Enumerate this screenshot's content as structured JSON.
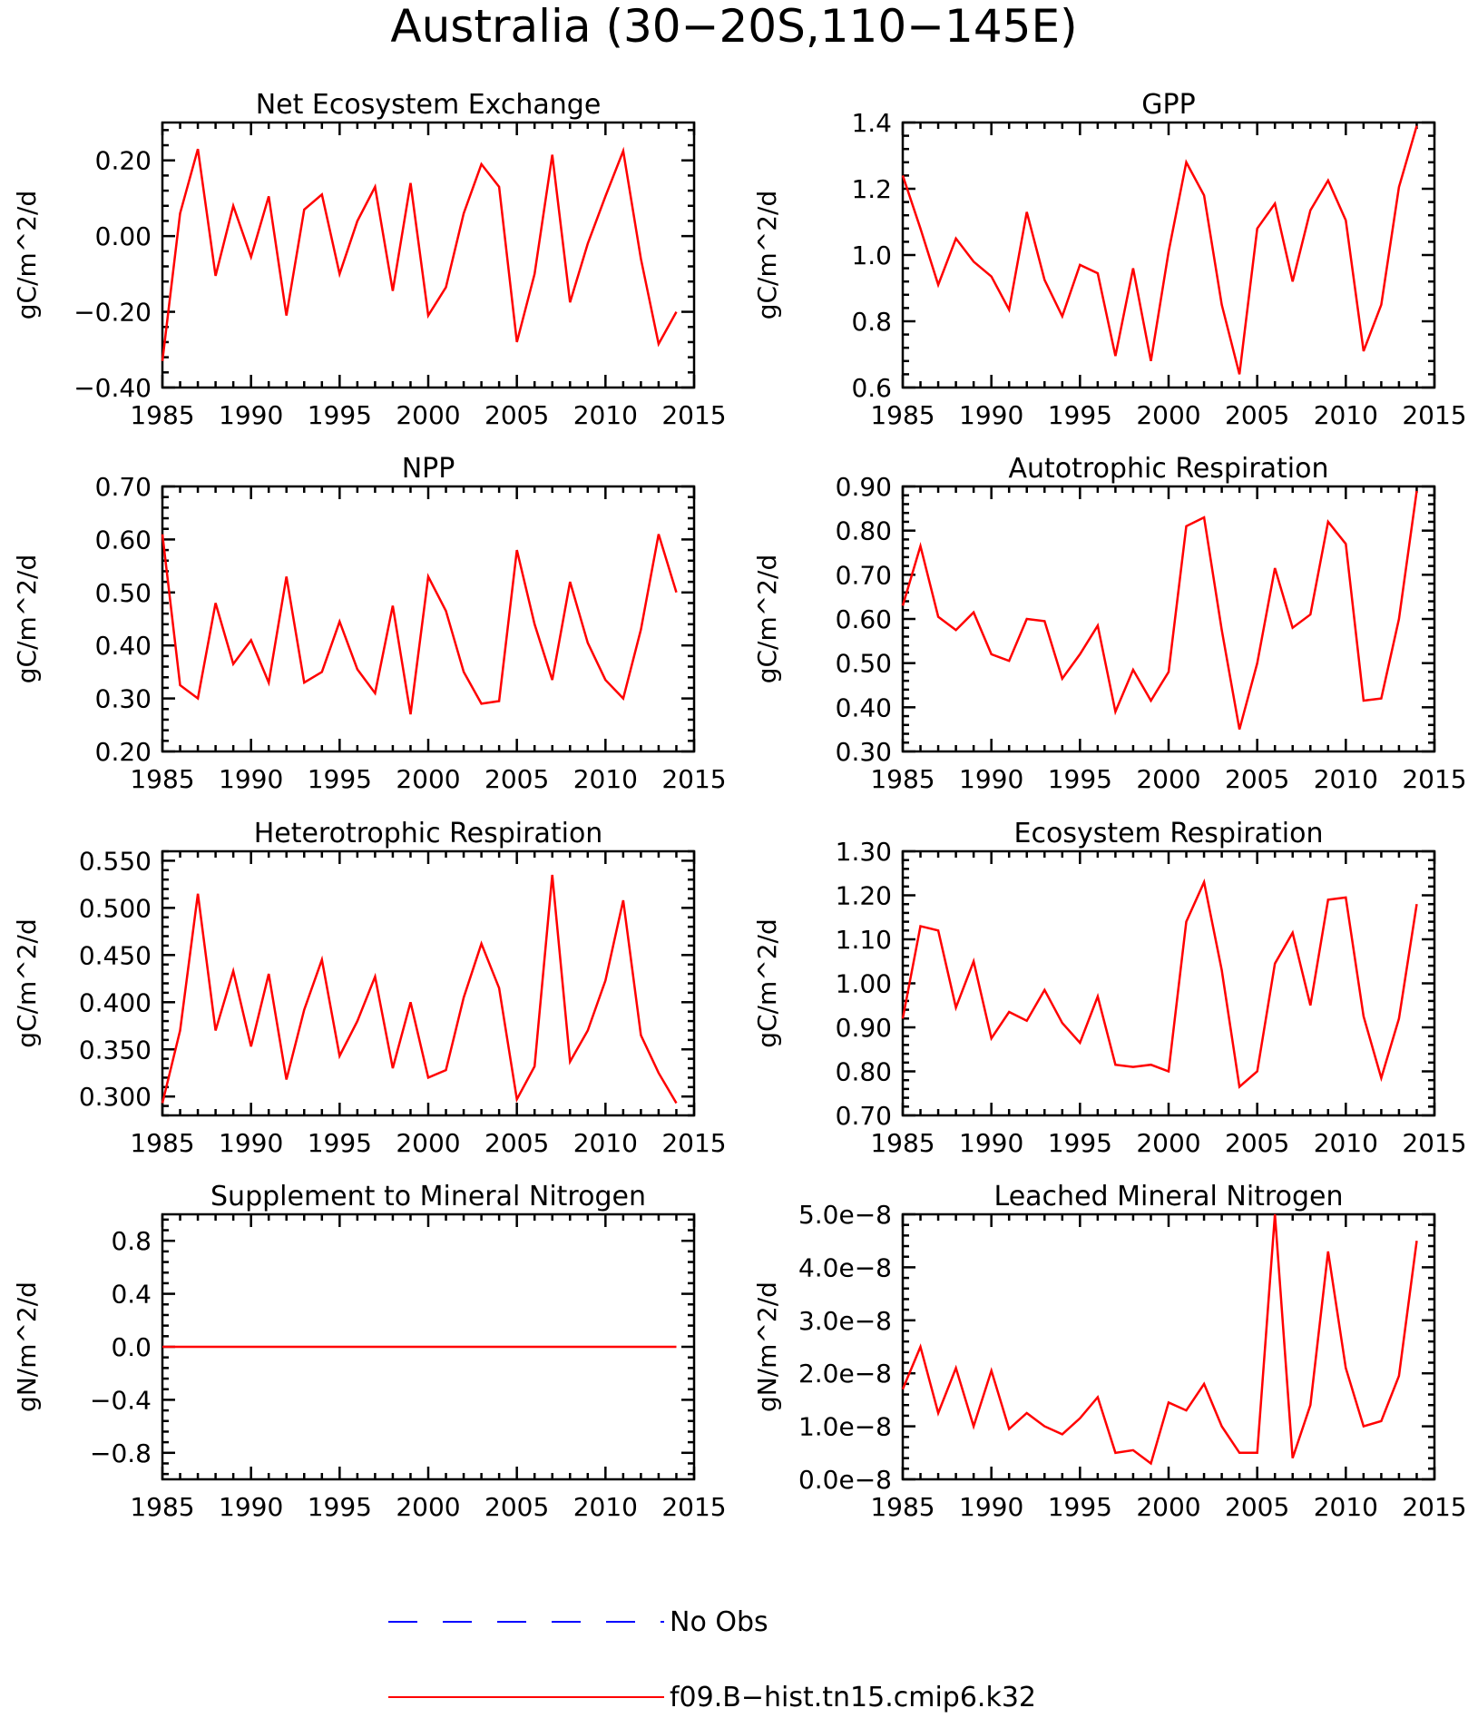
{
  "title": "Australia (30−20S,110−145E)",
  "colors": {
    "model": "#ff0000",
    "obs": "#0000ff",
    "axes": "#000000"
  },
  "legend": [
    {
      "label": "No Obs",
      "style": "dashed",
      "color": "#0000ff"
    },
    {
      "label": "f09.B−hist.tn15.cmip6.k32",
      "style": "solid",
      "color": "#ff0000"
    }
  ],
  "chart_data": [
    {
      "type": "line",
      "title": "Net Ecosystem Exchange",
      "ylabel": "gC/m^2/d",
      "xlim": [
        1985,
        2015
      ],
      "ylim": [
        -0.4,
        0.3
      ],
      "xticks": [
        1985,
        1990,
        1995,
        2000,
        2005,
        2010,
        2015
      ],
      "yticks": [
        -0.4,
        -0.2,
        0.0,
        0.2
      ],
      "ytick_labels": [
        "−0.40",
        "−0.20",
        "0.00",
        "0.20"
      ],
      "x": [
        1985,
        1986,
        1987,
        1988,
        1989,
        1990,
        1991,
        1992,
        1993,
        1994,
        1995,
        1996,
        1997,
        1998,
        1999,
        2000,
        2001,
        2002,
        2003,
        2004,
        2005,
        2006,
        2007,
        2008,
        2009,
        2010,
        2011,
        2012,
        2013,
        2014
      ],
      "series": [
        {
          "values": [
            -0.33,
            0.06,
            0.23,
            -0.105,
            0.08,
            -0.055,
            0.105,
            -0.21,
            0.07,
            0.11,
            -0.1,
            0.04,
            0.13,
            -0.145,
            0.14,
            -0.21,
            -0.135,
            0.06,
            0.19,
            0.13,
            -0.28,
            -0.1,
            0.215,
            -0.175,
            -0.02,
            0.105,
            0.225,
            -0.06,
            -0.285,
            -0.2
          ]
        }
      ]
    },
    {
      "type": "line",
      "title": "GPP",
      "ylabel": "gC/m^2/d",
      "xlim": [
        1985,
        2015
      ],
      "ylim": [
        0.6,
        1.4
      ],
      "xticks": [
        1985,
        1990,
        1995,
        2000,
        2005,
        2010,
        2015
      ],
      "yticks": [
        0.6,
        0.8,
        1.0,
        1.2,
        1.4
      ],
      "ytick_labels": [
        "0.6",
        "0.8",
        "1.0",
        "1.2",
        "1.4"
      ],
      "x": [
        1985,
        1986,
        1987,
        1988,
        1989,
        1990,
        1991,
        1992,
        1993,
        1994,
        1995,
        1996,
        1997,
        1998,
        1999,
        2000,
        2001,
        2002,
        2003,
        2004,
        2005,
        2006,
        2007,
        2008,
        2009,
        2010,
        2011,
        2012,
        2013,
        2014
      ],
      "series": [
        {
          "values": [
            1.24,
            1.08,
            0.91,
            1.05,
            0.98,
            0.935,
            0.835,
            1.13,
            0.925,
            0.815,
            0.97,
            0.945,
            0.695,
            0.96,
            0.68,
            1.01,
            1.28,
            1.18,
            0.85,
            0.64,
            1.08,
            1.155,
            0.92,
            1.135,
            1.225,
            1.105,
            0.71,
            0.85,
            1.205,
            1.39
          ]
        }
      ]
    },
    {
      "type": "line",
      "title": "NPP",
      "ylabel": "gC/m^2/d",
      "xlim": [
        1985,
        2015
      ],
      "ylim": [
        0.2,
        0.7
      ],
      "xticks": [
        1985,
        1990,
        1995,
        2000,
        2005,
        2010,
        2015
      ],
      "yticks": [
        0.2,
        0.3,
        0.4,
        0.5,
        0.6,
        0.7
      ],
      "ytick_labels": [
        "0.20",
        "0.30",
        "0.40",
        "0.50",
        "0.60",
        "0.70"
      ],
      "x": [
        1985,
        1986,
        1987,
        1988,
        1989,
        1990,
        1991,
        1992,
        1993,
        1994,
        1995,
        1996,
        1997,
        1998,
        1999,
        2000,
        2001,
        2002,
        2003,
        2004,
        2005,
        2006,
        2007,
        2008,
        2009,
        2010,
        2011,
        2012,
        2013,
        2014
      ],
      "series": [
        {
          "values": [
            0.61,
            0.325,
            0.3,
            0.48,
            0.365,
            0.41,
            0.33,
            0.53,
            0.33,
            0.35,
            0.445,
            0.355,
            0.31,
            0.475,
            0.27,
            0.53,
            0.465,
            0.35,
            0.29,
            0.295,
            0.58,
            0.44,
            0.335,
            0.52,
            0.405,
            0.335,
            0.3,
            0.43,
            0.61,
            0.5
          ]
        }
      ]
    },
    {
      "type": "line",
      "title": "Autotrophic Respiration",
      "ylabel": "gC/m^2/d",
      "xlim": [
        1985,
        2015
      ],
      "ylim": [
        0.3,
        0.9
      ],
      "xticks": [
        1985,
        1990,
        1995,
        2000,
        2005,
        2010,
        2015
      ],
      "yticks": [
        0.3,
        0.4,
        0.5,
        0.6,
        0.7,
        0.8,
        0.9
      ],
      "ytick_labels": [
        "0.30",
        "0.40",
        "0.50",
        "0.60",
        "0.70",
        "0.80",
        "0.90"
      ],
      "x": [
        1985,
        1986,
        1987,
        1988,
        1989,
        1990,
        1991,
        1992,
        1993,
        1994,
        1995,
        1996,
        1997,
        1998,
        1999,
        2000,
        2001,
        2002,
        2003,
        2004,
        2005,
        2006,
        2007,
        2008,
        2009,
        2010,
        2011,
        2012,
        2013,
        2014
      ],
      "series": [
        {
          "values": [
            0.63,
            0.765,
            0.605,
            0.575,
            0.615,
            0.52,
            0.505,
            0.6,
            0.595,
            0.465,
            0.52,
            0.585,
            0.39,
            0.485,
            0.415,
            0.48,
            0.81,
            0.83,
            0.575,
            0.35,
            0.5,
            0.715,
            0.58,
            0.61,
            0.82,
            0.77,
            0.415,
            0.42,
            0.6,
            0.89
          ]
        }
      ]
    },
    {
      "type": "line",
      "title": "Heterotrophic Respiration",
      "ylabel": "gC/m^2/d",
      "xlim": [
        1985,
        2015
      ],
      "ylim": [
        0.28,
        0.56
      ],
      "xticks": [
        1985,
        1990,
        1995,
        2000,
        2005,
        2010,
        2015
      ],
      "yticks": [
        0.3,
        0.35,
        0.4,
        0.45,
        0.5,
        0.55
      ],
      "ytick_labels": [
        "0.300",
        "0.350",
        "0.400",
        "0.450",
        "0.500",
        "0.550"
      ],
      "x": [
        1985,
        1986,
        1987,
        1988,
        1989,
        1990,
        1991,
        1992,
        1993,
        1994,
        1995,
        1996,
        1997,
        1998,
        1999,
        2000,
        2001,
        2002,
        2003,
        2004,
        2005,
        2006,
        2007,
        2008,
        2009,
        2010,
        2011,
        2012,
        2013,
        2014
      ],
      "series": [
        {
          "values": [
            0.293,
            0.37,
            0.515,
            0.37,
            0.433,
            0.353,
            0.43,
            0.318,
            0.392,
            0.445,
            0.343,
            0.38,
            0.427,
            0.33,
            0.4,
            0.32,
            0.328,
            0.405,
            0.462,
            0.415,
            0.297,
            0.332,
            0.535,
            0.337,
            0.37,
            0.423,
            0.508,
            0.365,
            0.325,
            0.293
          ]
        }
      ]
    },
    {
      "type": "line",
      "title": "Ecosystem Respiration",
      "ylabel": "gC/m^2/d",
      "xlim": [
        1985,
        2015
      ],
      "ylim": [
        0.7,
        1.3
      ],
      "xticks": [
        1985,
        1990,
        1995,
        2000,
        2005,
        2010,
        2015
      ],
      "yticks": [
        0.7,
        0.8,
        0.9,
        1.0,
        1.1,
        1.2,
        1.3
      ],
      "ytick_labels": [
        "0.70",
        "0.80",
        "0.90",
        "1.00",
        "1.10",
        "1.20",
        "1.30"
      ],
      "x": [
        1985,
        1986,
        1987,
        1988,
        1989,
        1990,
        1991,
        1992,
        1993,
        1994,
        1995,
        1996,
        1997,
        1998,
        1999,
        2000,
        2001,
        2002,
        2003,
        2004,
        2005,
        2006,
        2007,
        2008,
        2009,
        2010,
        2011,
        2012,
        2013,
        2014
      ],
      "series": [
        {
          "values": [
            0.92,
            1.13,
            1.12,
            0.945,
            1.05,
            0.875,
            0.935,
            0.915,
            0.985,
            0.91,
            0.865,
            0.97,
            0.815,
            0.81,
            0.815,
            0.8,
            1.14,
            1.23,
            1.03,
            0.765,
            0.8,
            1.045,
            1.115,
            0.95,
            1.19,
            1.195,
            0.925,
            0.785,
            0.92,
            1.18
          ]
        }
      ]
    },
    {
      "type": "line",
      "title": "Supplement to Mineral Nitrogen",
      "ylabel": "gN/m^2/d",
      "xlim": [
        1985,
        2015
      ],
      "ylim": [
        -1.0,
        1.0
      ],
      "xticks": [
        1985,
        1990,
        1995,
        2000,
        2005,
        2010,
        2015
      ],
      "yticks": [
        -0.8,
        -0.4,
        0.0,
        0.4,
        0.8
      ],
      "ytick_labels": [
        "−0.8",
        "−0.4",
        "0.0",
        "0.4",
        "0.8"
      ],
      "x": [
        1985,
        1986,
        1987,
        1988,
        1989,
        1990,
        1991,
        1992,
        1993,
        1994,
        1995,
        1996,
        1997,
        1998,
        1999,
        2000,
        2001,
        2002,
        2003,
        2004,
        2005,
        2006,
        2007,
        2008,
        2009,
        2010,
        2011,
        2012,
        2013,
        2014
      ],
      "series": [
        {
          "values": [
            0,
            0,
            0,
            0,
            0,
            0,
            0,
            0,
            0,
            0,
            0,
            0,
            0,
            0,
            0,
            0,
            0,
            0,
            0,
            0,
            0,
            0,
            0,
            0,
            0,
            0,
            0,
            0,
            0,
            0
          ]
        }
      ]
    },
    {
      "type": "line",
      "title": "Leached Mineral Nitrogen",
      "ylabel": "gN/m^2/d",
      "xlim": [
        1985,
        2015
      ],
      "ylim": [
        0,
        5e-08
      ],
      "xticks": [
        1985,
        1990,
        1995,
        2000,
        2005,
        2010,
        2015
      ],
      "yticks": [
        0,
        1e-08,
        2e-08,
        3e-08,
        4e-08,
        5e-08
      ],
      "ytick_labels": [
        "0.0e−8",
        "1.0e−8",
        "2.0e−8",
        "3.0e−8",
        "4.0e−8",
        "5.0e−8"
      ],
      "x": [
        1985,
        1986,
        1987,
        1988,
        1989,
        1990,
        1991,
        1992,
        1993,
        1994,
        1995,
        1996,
        1997,
        1998,
        1999,
        2000,
        2001,
        2002,
        2003,
        2004,
        2005,
        2006,
        2007,
        2008,
        2009,
        2010,
        2011,
        2012,
        2013,
        2014
      ],
      "series": [
        {
          "values": [
            1.7e-08,
            2.5e-08,
            1.25e-08,
            2.1e-08,
            1e-08,
            2.05e-08,
            9.5e-09,
            1.25e-08,
            1e-08,
            8.5e-09,
            1.15e-08,
            1.55e-08,
            5e-09,
            5.5e-09,
            3e-09,
            1.45e-08,
            1.3e-08,
            1.8e-08,
            1e-08,
            5e-09,
            5e-09,
            5e-08,
            4e-09,
            1.4e-08,
            4.3e-08,
            2.1e-08,
            1e-08,
            1.1e-08,
            1.95e-08,
            4.5e-08
          ]
        }
      ]
    }
  ]
}
